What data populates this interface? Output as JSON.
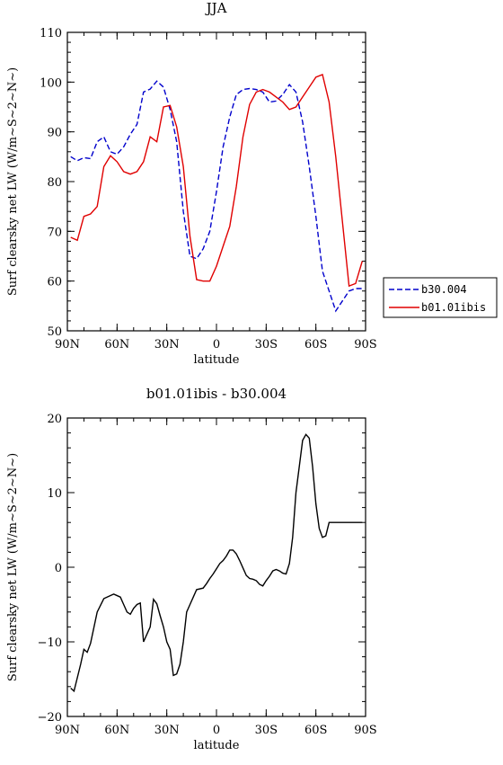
{
  "chart_data": [
    {
      "type": "line",
      "title": "JJA",
      "xlabel": "latitude",
      "ylabel": "Surf clearsky net LW (W/m~S~2~N~)",
      "xlim": [
        90,
        -90
      ],
      "ylim": [
        50,
        110
      ],
      "xticks": [
        90,
        60,
        30,
        0,
        -30,
        -60,
        -90
      ],
      "xtick_labels": [
        "90N",
        "60N",
        "30N",
        "0",
        "30S",
        "60S",
        "90S"
      ],
      "yticks": [
        50,
        60,
        70,
        80,
        90,
        100,
        110
      ],
      "ytick_labels": [
        "50",
        "60",
        "70",
        "80",
        "90",
        "100",
        "110"
      ],
      "legend": "right-middle",
      "x": [
        88,
        84,
        80,
        76,
        72,
        68,
        64,
        60,
        56,
        52,
        48,
        44,
        40,
        36,
        32,
        28,
        24,
        20,
        16,
        12,
        8,
        4,
        0,
        -4,
        -8,
        -12,
        -16,
        -20,
        -24,
        -28,
        -32,
        -36,
        -40,
        -44,
        -48,
        -52,
        -56,
        -60,
        -64,
        -68,
        -72,
        -76,
        -80,
        -84,
        -88
      ],
      "series": [
        {
          "name": "b30.004",
          "color": "#0000cc",
          "dash": "dashed",
          "values": [
            85,
            84.2,
            84.8,
            84.6,
            88,
            89,
            86,
            85.5,
            87,
            89.5,
            91.5,
            98,
            98.6,
            100.2,
            99,
            94.5,
            88,
            74,
            65,
            64.5,
            66.5,
            70,
            78,
            87,
            93,
            97.5,
            98.5,
            98.7,
            98.5,
            98,
            96,
            96.2,
            97.5,
            99.5,
            98,
            92,
            83,
            73,
            62,
            58,
            54,
            56,
            58,
            58.5,
            58.5
          ]
        },
        {
          "name": "b01.01ibis",
          "color": "#e00000",
          "dash": "solid",
          "values": [
            68.8,
            68.2,
            73,
            73.5,
            75,
            83,
            85.2,
            84,
            82,
            81.5,
            82,
            84,
            89,
            88,
            95,
            95.3,
            91,
            83,
            69,
            60.3,
            60,
            60,
            63,
            67,
            71,
            79,
            89,
            95.5,
            98,
            98.5,
            98,
            97,
            96,
            94.5,
            95,
            97,
            99,
            101,
            101.5,
            96,
            85,
            72,
            59,
            59.5,
            64
          ]
        }
      ]
    },
    {
      "type": "line",
      "title": "b01.01ibis - b30.004",
      "xlabel": "latitude",
      "ylabel": "Surf clearsky net LW (W/m~S~2~N~)",
      "xlim": [
        90,
        -90
      ],
      "ylim": [
        -20,
        20
      ],
      "xticks": [
        90,
        60,
        30,
        0,
        -30,
        -60,
        -90
      ],
      "xtick_labels": [
        "90N",
        "60N",
        "30N",
        "0",
        "30S",
        "60S",
        "90S"
      ],
      "yticks": [
        -20,
        -10,
        0,
        10,
        20
      ],
      "ytick_labels": [
        "−20",
        "−10",
        "0",
        "10",
        "20"
      ],
      "x": [
        88,
        86,
        82,
        80,
        78,
        76,
        72,
        68,
        64,
        62,
        58,
        56,
        54,
        52,
        50,
        48,
        46,
        44,
        40,
        38,
        36,
        34,
        32,
        30,
        28,
        26,
        24,
        22,
        20,
        18,
        16,
        14,
        12,
        8,
        6,
        4,
        2,
        0,
        -2,
        -4,
        -6,
        -8,
        -10,
        -12,
        -14,
        -16,
        -18,
        -20,
        -22,
        -24,
        -26,
        -28,
        -30,
        -32,
        -34,
        -36,
        -38,
        -40,
        -42,
        -44,
        -46,
        -48,
        -50,
        -52,
        -54,
        -56,
        -58,
        -60,
        -62,
        -64,
        -66,
        -68,
        -70,
        -72,
        -74,
        -76,
        -78,
        -80,
        -82,
        -84,
        -86,
        -88
      ],
      "series": [
        {
          "name": "",
          "color": "#000000",
          "dash": "solid",
          "values": [
            -16.2,
            -16.6,
            -13,
            -11,
            -11.4,
            -10.2,
            -6,
            -4.2,
            -3.8,
            -3.6,
            -4,
            -5,
            -6,
            -6.3,
            -5.5,
            -5,
            -4.8,
            -10,
            -8,
            -4.3,
            -4.9,
            -6.5,
            -8,
            -10,
            -11,
            -14.5,
            -14.3,
            -13,
            -10,
            -6,
            -5,
            -4,
            -3,
            -2.8,
            -2.2,
            -1.5,
            -0.9,
            -0.2,
            0.5,
            0.9,
            1.5,
            2.3,
            2.3,
            1.8,
            0.9,
            -0.1,
            -1.1,
            -1.5,
            -1.6,
            -1.8,
            -2.3,
            -2.5,
            -1.8,
            -1.2,
            -0.5,
            -0.3,
            -0.5,
            -0.8,
            -0.9,
            0.5,
            4,
            10,
            13.5,
            17,
            17.8,
            17.3,
            13.5,
            8.5,
            5.2,
            4,
            4.2,
            6,
            6,
            6,
            6,
            6,
            6,
            6,
            6,
            6,
            6,
            6
          ]
        }
      ]
    }
  ]
}
